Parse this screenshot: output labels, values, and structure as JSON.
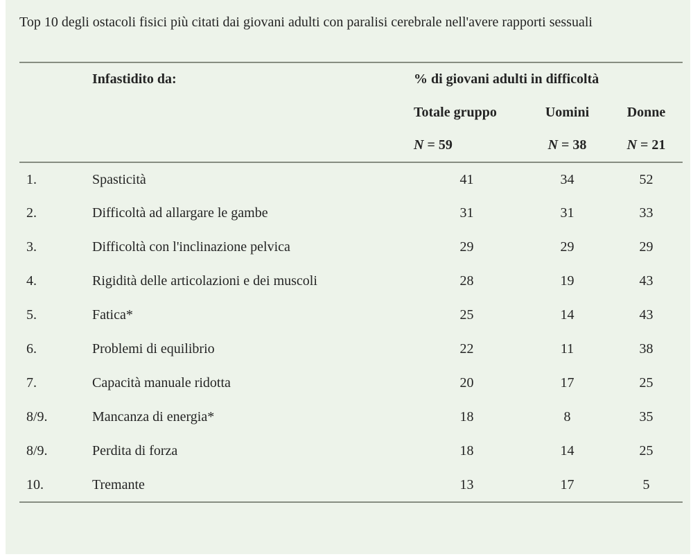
{
  "title": "Top 10 degli ostacoli fisici più citati dai giovani adulti con paralisi cerebrale nell'avere rapporti sessuali",
  "table": {
    "header": {
      "col_label": "Infastidito da:",
      "group": "% di giovani adulti in difficoltà",
      "subcols": {
        "totale": "Totale gruppo",
        "uomini": "Uomini",
        "donne": "Donne"
      },
      "n_symbol": "N",
      "n_values": {
        "totale": "= 59",
        "uomini": "= 38",
        "donne": "= 21"
      }
    },
    "rows": [
      {
        "rank": "1.",
        "label": "Spasticità",
        "totale": "41",
        "uomini": "34",
        "donne": "52"
      },
      {
        "rank": "2.",
        "label": "Difficoltà ad allargare le gambe",
        "totale": "31",
        "uomini": "31",
        "donne": "33"
      },
      {
        "rank": "3.",
        "label": "Difficoltà con l'inclinazione pelvica",
        "totale": "29",
        "uomini": "29",
        "donne": "29"
      },
      {
        "rank": "4.",
        "label": "Rigidità delle articolazioni e dei muscoli",
        "totale": "28",
        "uomini": "19",
        "donne": "43"
      },
      {
        "rank": "5.",
        "label": "Fatica*",
        "totale": "25",
        "uomini": "14",
        "donne": "43"
      },
      {
        "rank": "6.",
        "label": "Problemi di equilibrio",
        "totale": "22",
        "uomini": "11",
        "donne": "38"
      },
      {
        "rank": "7.",
        "label": "Capacità manuale ridotta",
        "totale": "20",
        "uomini": "17",
        "donne": "25"
      },
      {
        "rank": "8/9.",
        "label": "Mancanza di energia*",
        "totale": "18",
        "uomini": "8",
        "donne": "35"
      },
      {
        "rank": "8/9.",
        "label": "Perdita di forza",
        "totale": "18",
        "uomini": "14",
        "donne": "25"
      },
      {
        "rank": "10.",
        "label": "Tremante",
        "totale": "13",
        "uomini": "17",
        "donne": "5"
      }
    ]
  },
  "colors": {
    "card_background": "#edf3ea",
    "text": "#242424",
    "rule": "#878d82"
  }
}
